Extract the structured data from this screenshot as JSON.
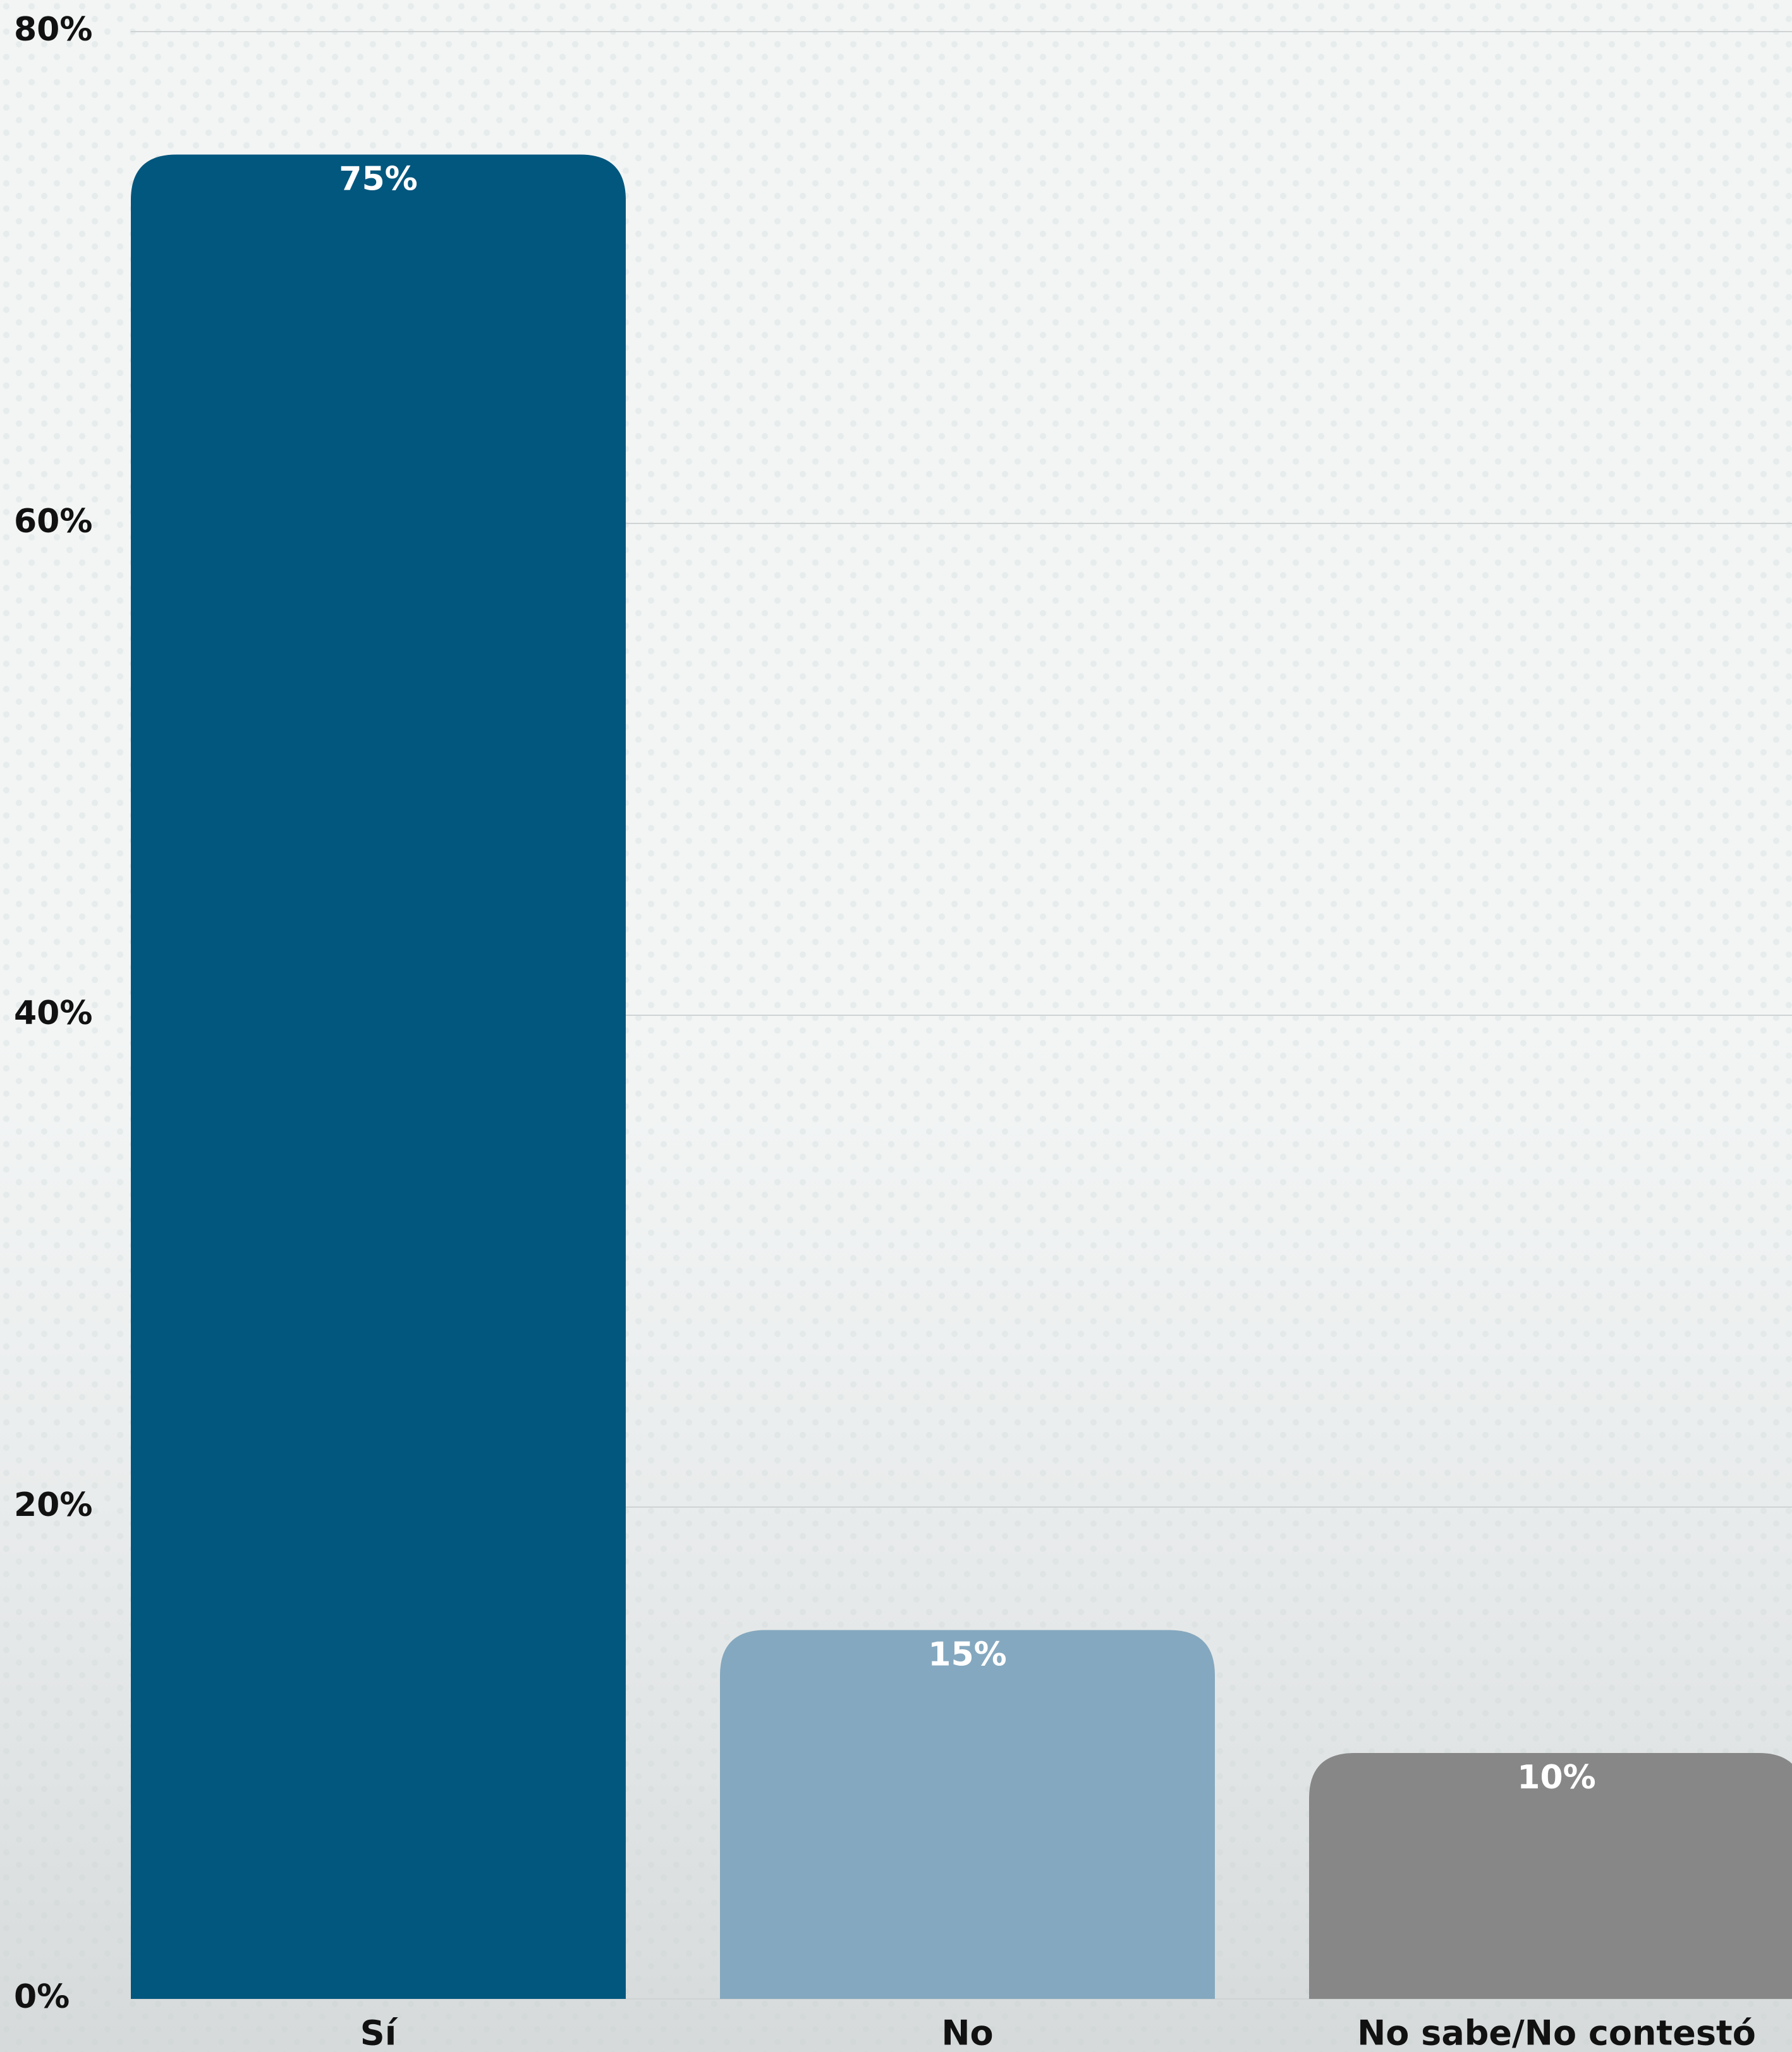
{
  "chart_data": {
    "type": "bar",
    "categories": [
      "Sí",
      "No",
      "No sabe/No contestó"
    ],
    "values": [
      75,
      15,
      10
    ],
    "value_labels": [
      "75%",
      "15%",
      "10%"
    ],
    "colors": [
      "#02577e",
      "#84a8bf",
      "#878787"
    ],
    "ylim": [
      0,
      80
    ],
    "yticks": [
      {
        "value": 0,
        "label": "0%"
      },
      {
        "value": 20,
        "label": "20%"
      },
      {
        "value": 40,
        "label": "40%"
      },
      {
        "value": 60,
        "label": "60%"
      },
      {
        "value": 80,
        "label": "80%"
      }
    ],
    "grid": true
  }
}
